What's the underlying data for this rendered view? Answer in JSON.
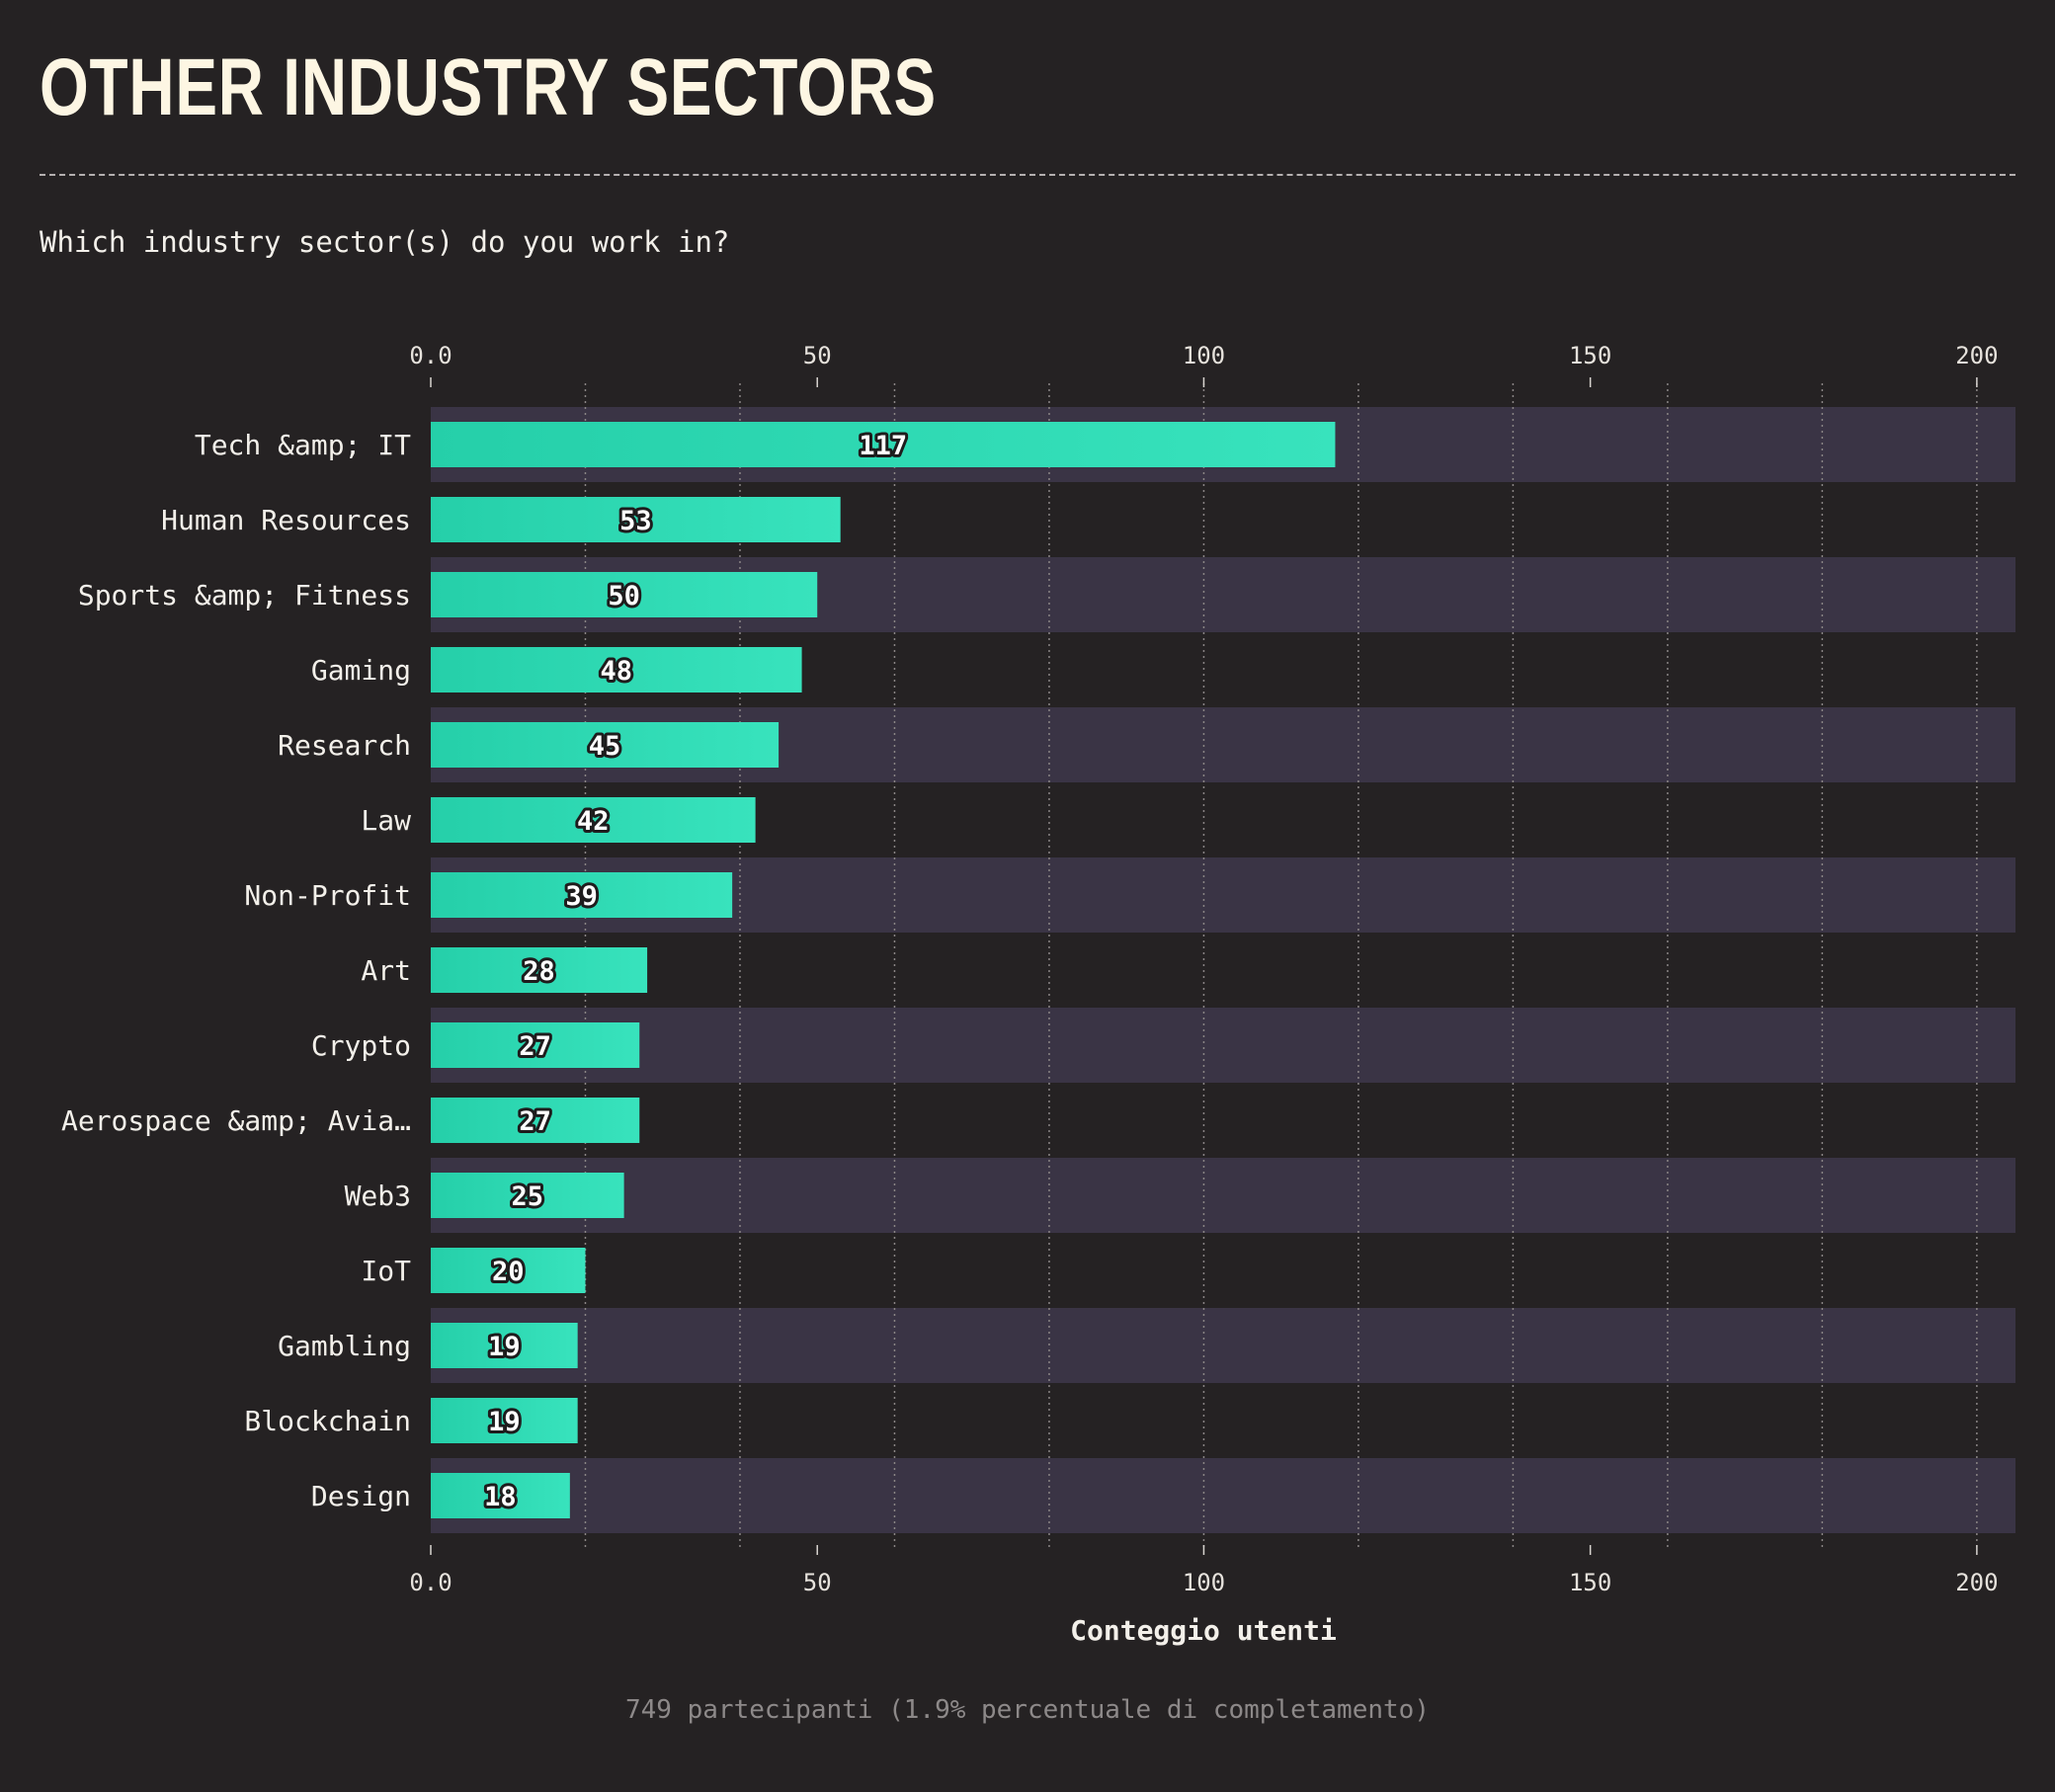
{
  "title": "OTHER INDUSTRY SECTORS",
  "subtitle": "Which industry sector(s) do you work in?",
  "footer": "749 partecipanti (1.9% percentuale di completamento)",
  "colors": {
    "background": "#252223",
    "band": "#3a3445",
    "bar_start": "#25cfa9",
    "bar_end": "#38e3bd",
    "text": "#f3f0ea",
    "grid": "#8a8585"
  },
  "chart_data": {
    "type": "bar",
    "orientation": "horizontal",
    "categories": [
      "Tech &amp; IT",
      "Human Resources",
      "Sports &amp; Fitness",
      "Gaming",
      "Research",
      "Law",
      "Non-Profit",
      "Art",
      "Crypto",
      "Aerospace &amp; Avia…",
      "Web3",
      "IoT",
      "Gambling",
      "Blockchain",
      "Design"
    ],
    "values": [
      117,
      53,
      50,
      48,
      45,
      42,
      39,
      28,
      27,
      27,
      25,
      20,
      19,
      19,
      18
    ],
    "xlabel": "Conteggio utenti",
    "xlim": [
      0,
      205
    ],
    "ticks": [
      0,
      50,
      100,
      150,
      200
    ],
    "tick_labels": [
      "0.0",
      "50",
      "100",
      "150",
      "200"
    ],
    "grid": true,
    "grid_step": 20,
    "axis_position": "top-and-bottom"
  }
}
